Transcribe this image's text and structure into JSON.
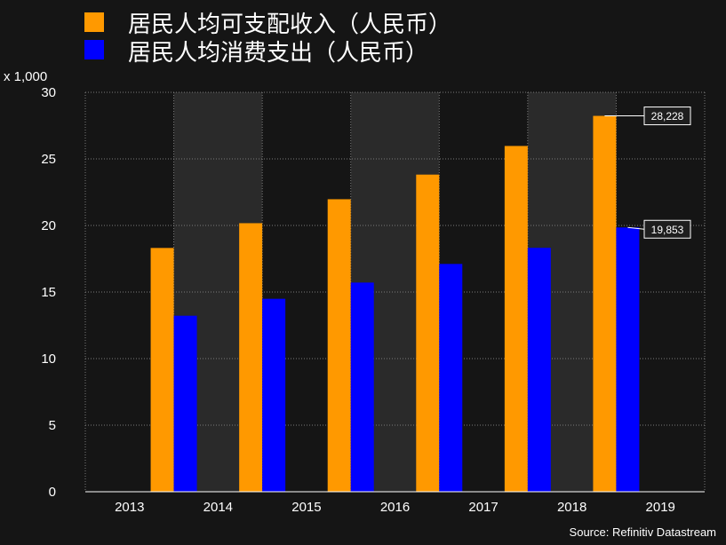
{
  "chart_data": {
    "type": "bar",
    "categories": [
      "2013",
      "2014",
      "2015",
      "2016",
      "2017",
      "2018",
      "2019"
    ],
    "series": [
      {
        "name": "居民人均可支配收入（人民币）",
        "color": "#ff9900",
        "values": [
          18.31,
          20.17,
          21.97,
          23.82,
          25.97,
          28.23,
          null
        ]
      },
      {
        "name": "居民人均消费支出（人民币）",
        "color": "#0000ff",
        "values": [
          13.22,
          14.49,
          15.71,
          17.11,
          18.32,
          19.85,
          null
        ]
      }
    ],
    "y_unit": "x 1,000",
    "ylim": [
      0,
      30
    ],
    "yticks": [
      "0",
      "5",
      "10",
      "15",
      "20",
      "25",
      "30"
    ],
    "grid": true,
    "legend_position": "top-left",
    "annotations": [
      {
        "series": 0,
        "category": "2018",
        "label": "28,228"
      },
      {
        "series": 1,
        "category": "2018",
        "label": "19,853"
      }
    ],
    "source": "Source: Refinitiv Datastream"
  },
  "colors": {
    "background": "#151515",
    "plot_band_alt": "#2a2a2a",
    "grid": "#7a7a7a"
  }
}
